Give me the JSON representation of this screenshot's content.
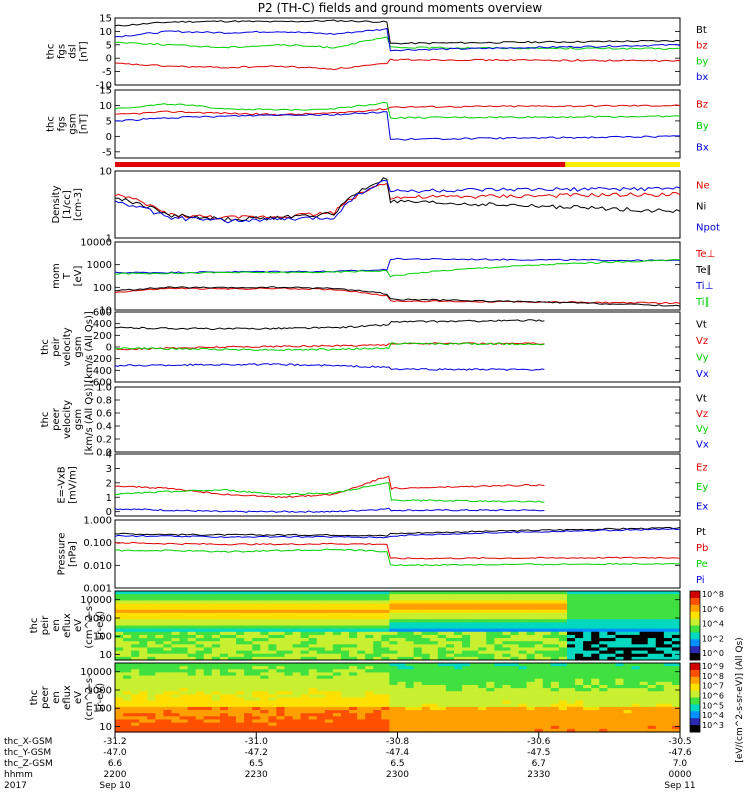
{
  "title": "P2 (TH-C) fields and ground moments overview",
  "colors": {
    "black": "#000000",
    "red": "#e00000",
    "green": "#00d000",
    "blue": "#0000e0",
    "yellow": "#ffee00",
    "cyan": "#00c8ff"
  },
  "mode_bar": {
    "segments": [
      {
        "from": 0.0,
        "to": 0.797,
        "color": "#e00000"
      },
      {
        "from": 0.797,
        "to": 1.0,
        "color": "#ffee00"
      }
    ]
  },
  "chart_data": {
    "type": "line",
    "time_axis": {
      "range": [
        "2200",
        "0000"
      ],
      "rows": [
        {
          "label": "thc_X-GSM",
          "values": [
            "-31.2",
            "-31.0",
            "-30.8",
            "-30.6",
            "-30.5"
          ]
        },
        {
          "label": "thc_Y-GSM",
          "values": [
            "-47.0",
            "-47.2",
            "-47.4",
            "-47.5",
            "-47.6"
          ]
        },
        {
          "label": "thc_Z-GSM",
          "values": [
            "6.6",
            "6.5",
            "6.5",
            "6.7",
            "7.0"
          ]
        },
        {
          "label": "hhmm",
          "values": [
            "2200",
            "2230",
            "2300",
            "2330",
            "0000"
          ]
        },
        {
          "label": "2017",
          "values": [
            "Sep 10",
            "",
            "",
            "",
            "Sep 11"
          ]
        }
      ]
    },
    "panels": [
      {
        "name": "fgs-dsl",
        "ylabel_lines": [
          "thc",
          "fgs",
          "dsl",
          "[nT]"
        ],
        "ylim": [
          -10,
          15
        ],
        "ticks": [
          "15",
          "10",
          "5",
          "0",
          "-5",
          "-10"
        ],
        "tick_values": [
          15,
          10,
          5,
          0,
          -5,
          -10
        ],
        "series": [
          {
            "name": "Bt",
            "color": "#000000",
            "before": [
              12,
              13.5,
              13.8,
              13.6,
              14,
              13.5
            ],
            "after": [
              5.5,
              6.5
            ]
          },
          {
            "name": "bz",
            "color": "#e00000",
            "before": [
              -2,
              -3,
              -3.5,
              -3,
              -4,
              -2
            ],
            "after": [
              -0.5,
              -1
            ]
          },
          {
            "name": "by",
            "color": "#00d000",
            "before": [
              6,
              5,
              4,
              5,
              4,
              8
            ],
            "after": [
              4,
              3.5
            ]
          },
          {
            "name": "bx",
            "color": "#0000e0",
            "before": [
              8,
              10,
              9.5,
              10,
              9,
              11
            ],
            "after": [
              3,
              5
            ]
          }
        ]
      },
      {
        "name": "fgs-gsm",
        "ylabel_lines": [
          "thc",
          "fgs",
          "gsm",
          "[nT]"
        ],
        "ylim": [
          -7,
          15
        ],
        "ticks": [
          "15",
          "10",
          "5",
          "0",
          "-5"
        ],
        "tick_values": [
          15,
          10,
          5,
          0,
          -5
        ],
        "series": [
          {
            "name": "Bz",
            "color": "#e00000",
            "before": [
              7,
              8,
              7.5,
              7,
              7.5,
              9
            ],
            "after": [
              9.5,
              10
            ]
          },
          {
            "name": "By",
            "color": "#00d000",
            "before": [
              9,
              10.5,
              9,
              8.5,
              9,
              11
            ],
            "after": [
              6,
              6.5
            ]
          },
          {
            "name": "Bx",
            "color": "#0000e0",
            "before": [
              5,
              6,
              6.5,
              7,
              7,
              8
            ],
            "after": [
              -1,
              0
            ]
          }
        ]
      },
      {
        "name": "density",
        "ylabel_lines": [
          "Density",
          "[1/cc]",
          "[cm-3]"
        ],
        "log": true,
        "ylim": [
          1,
          10
        ],
        "ticks": [
          "10",
          "1"
        ],
        "tick_values": [
          10,
          1
        ],
        "series": [
          {
            "name": "Ne",
            "color": "#e00000",
            "before": [
              4.5,
              2.2,
              2.0,
              2.1,
              2.4,
              7
            ],
            "after": [
              4.0,
              4.5
            ]
          },
          {
            "name": "Ni",
            "color": "#000000",
            "before": [
              4.0,
              2.2,
              1.9,
              2.0,
              2.3,
              8
            ],
            "after": [
              3.5,
              2.5
            ]
          },
          {
            "name": "Npot",
            "color": "#0000e0",
            "before": [
              3.5,
              2.0,
              1.8,
              1.9,
              2.0,
              7.5
            ],
            "after": [
              5.0,
              5.5
            ]
          }
        ]
      },
      {
        "name": "moments-temperature",
        "ylabel_lines": [
          "mom",
          "T",
          "[eV]"
        ],
        "log": true,
        "ylim": [
          10,
          10000
        ],
        "ticks": [
          "10000",
          "1000",
          "100",
          "10"
        ],
        "tick_values": [
          10000,
          1000,
          100,
          10
        ],
        "series": [
          {
            "name": "Te⊥",
            "color": "#e00000",
            "before": [
              60,
              90,
              85,
              90,
              80,
              40
            ],
            "after": [
              25,
              20
            ]
          },
          {
            "name": "Te∥",
            "color": "#000000",
            "before": [
              70,
              100,
              95,
              100,
              90,
              50
            ],
            "after": [
              30,
              15
            ]
          },
          {
            "name": "Ti⊥",
            "color": "#0000e0",
            "before": [
              450,
              450,
              480,
              500,
              500,
              600
            ],
            "after": [
              1800,
              1500
            ]
          },
          {
            "name": "Ti∥",
            "color": "#00d000",
            "before": [
              400,
              420,
              450,
              450,
              470,
              550
            ],
            "after": [
              300,
              1600
            ]
          }
        ]
      },
      {
        "name": "peir-velocity",
        "ylabel_lines": [
          "thc",
          "peir",
          "velocity",
          "gsm",
          "[km/s (All Qs)]"
        ],
        "ylim": [
          -600,
          600
        ],
        "ticks": [
          "600",
          "400",
          "200",
          "0",
          "-200",
          "-400",
          "-600"
        ],
        "tick_values": [
          600,
          400,
          200,
          0,
          -200,
          -400,
          -600
        ],
        "series": [
          {
            "name": "Vt",
            "color": "#000000",
            "before": [
              330,
              320,
              310,
              320,
              330,
              380
            ],
            "after": [
              430,
              480
            ]
          },
          {
            "name": "Vz",
            "color": "#e00000",
            "before": [
              -40,
              -20,
              0,
              10,
              20,
              40
            ],
            "after": [
              60,
              60
            ]
          },
          {
            "name": "Vy",
            "color": "#00d000",
            "before": [
              -20,
              -30,
              -40,
              -50,
              -40,
              -20
            ],
            "after": [
              60,
              40
            ]
          },
          {
            "name": "Vx",
            "color": "#0000e0",
            "before": [
              -320,
              -310,
              -300,
              -300,
              -320,
              -350
            ],
            "after": [
              -380,
              -400
            ]
          }
        ]
      },
      {
        "name": "peer-velocity",
        "ylabel_lines": [
          "thc",
          "peer",
          "velocity",
          "gsm",
          "[km/s (All Qs)]"
        ],
        "ylim": [
          0,
          1
        ],
        "ticks": [
          "1.0",
          "0.8",
          "0.6",
          "0.4",
          "0.2",
          "0.0"
        ],
        "tick_values": [
          1.0,
          0.8,
          0.6,
          0.4,
          0.2,
          0.0
        ],
        "series": [
          {
            "name": "Vt",
            "color": "#000000",
            "before": [],
            "after": []
          },
          {
            "name": "Vz",
            "color": "#e00000",
            "before": [],
            "after": []
          },
          {
            "name": "Vy",
            "color": "#00d000",
            "before": [],
            "after": []
          },
          {
            "name": "Vx",
            "color": "#0000e0",
            "before": [],
            "after": []
          }
        ]
      },
      {
        "name": "efield",
        "ylabel_lines": [
          "E=-VxB",
          "[mV/m]"
        ],
        "ylim": [
          -0.3,
          4
        ],
        "ticks": [
          "4",
          "3",
          "2",
          "1",
          "0"
        ],
        "tick_values": [
          4,
          3,
          2,
          1,
          0
        ],
        "series": [
          {
            "name": "Ez",
            "color": "#e00000",
            "before": [
              1.8,
              1.6,
              1.2,
              1.0,
              1.2,
              2.5
            ],
            "after": [
              1.6,
              2.1
            ]
          },
          {
            "name": "Ey",
            "color": "#00d000",
            "before": [
              1.2,
              1.4,
              1.5,
              1.2,
              1.3,
              2.0
            ],
            "after": [
              0.8,
              0.6
            ]
          },
          {
            "name": "Ex",
            "color": "#0000e0",
            "before": [
              0.2,
              0.1,
              0.0,
              0.0,
              0.0,
              0.2
            ],
            "after": [
              0.1,
              0.1
            ]
          }
        ]
      },
      {
        "name": "pressure",
        "ylabel_lines": [
          "Pressure",
          "[nPa]"
        ],
        "log": true,
        "ylim": [
          0.001,
          1.0
        ],
        "ticks": [
          "1.000",
          "0.100",
          "0.010",
          "0.001"
        ],
        "tick_values": [
          1.0,
          0.1,
          0.01,
          0.001
        ],
        "series": [
          {
            "name": "Pt",
            "color": "#000000",
            "before": [
              0.25,
              0.23,
              0.22,
              0.22,
              0.22,
              0.2
            ],
            "after": [
              0.25,
              0.45
            ]
          },
          {
            "name": "Pb",
            "color": "#e00000",
            "before": [
              0.1,
              0.09,
              0.085,
              0.085,
              0.09,
              0.085
            ],
            "after": [
              0.02,
              0.022
            ]
          },
          {
            "name": "Pe",
            "color": "#00d000",
            "before": [
              0.045,
              0.045,
              0.04,
              0.045,
              0.05,
              0.04
            ],
            "after": [
              0.01,
              0.012
            ]
          },
          {
            "name": "Pi",
            "color": "#0000e0",
            "before": [
              0.2,
              0.19,
              0.18,
              0.18,
              0.18,
              0.17
            ],
            "after": [
              0.2,
              0.4
            ]
          }
        ]
      },
      {
        "name": "peir-eflux-spectrogram",
        "type": "heatmap",
        "ylabel_lines": [
          "thc",
          "peir",
          "en",
          "eflux",
          "eV",
          "(cm^2-s-",
          "sr-eV)"
        ],
        "log": true,
        "ylim": [
          5,
          30000
        ],
        "ticks": [
          "10000",
          "1000",
          "100",
          "10"
        ],
        "tick_values": [
          10000,
          1000,
          100,
          10
        ],
        "colorbar": {
          "label": "[eV/(cm^2-s-sr-eV)]  (All Qs)",
          "ticks": [
            "10^8",
            "10^6",
            "10^4",
            "10^2",
            "10^0"
          ]
        }
      },
      {
        "name": "peer-eflux-spectrogram",
        "type": "heatmap",
        "ylabel_lines": [
          "thc",
          "peer",
          "en",
          "eflux",
          "eV",
          "(cm^2-s-",
          "sr-eV)"
        ],
        "log": true,
        "ylim": [
          5,
          30000
        ],
        "ticks": [
          "10000",
          "1000",
          "100",
          "10"
        ],
        "tick_values": [
          10000,
          1000,
          100,
          10
        ],
        "colorbar": {
          "label": "",
          "ticks": [
            "10^9",
            "10^8",
            "10^7",
            "10^6",
            "10^5",
            "10^4",
            "10^3"
          ]
        }
      }
    ]
  }
}
